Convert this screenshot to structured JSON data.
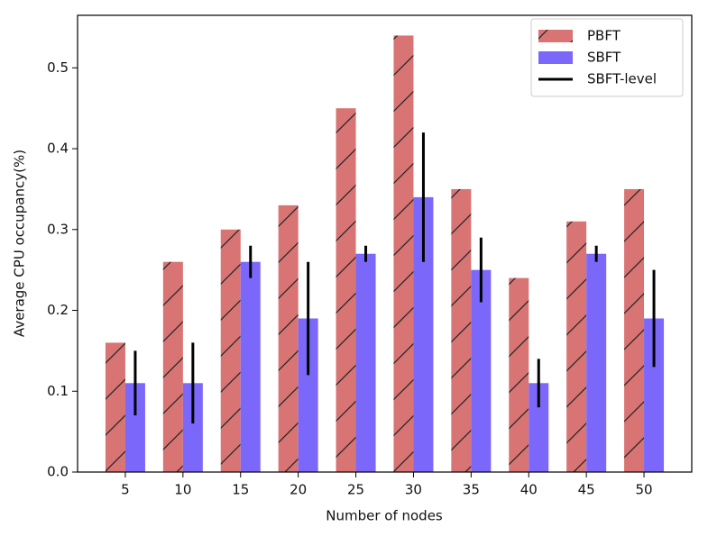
{
  "chart_data": {
    "type": "bar",
    "xlabel": "Number of nodes",
    "ylabel": "Average CPU occupancy(%)",
    "categories": [
      5,
      10,
      15,
      20,
      25,
      30,
      35,
      40,
      45,
      50
    ],
    "series": [
      {
        "name": "PBFT",
        "color": "#d87473",
        "hatch": "/",
        "values": [
          0.16,
          0.26,
          0.3,
          0.33,
          0.45,
          0.54,
          0.35,
          0.24,
          0.31,
          0.35
        ]
      },
      {
        "name": "SBFT",
        "color": "#7b68fb",
        "values": [
          0.11,
          0.11,
          0.26,
          0.19,
          0.27,
          0.34,
          0.25,
          0.11,
          0.27,
          0.19
        ],
        "error": {
          "name": "SBFT-level",
          "color": "#000000",
          "values": [
            0.04,
            0.05,
            0.02,
            0.07,
            0.01,
            0.08,
            0.04,
            0.03,
            0.01,
            0.06
          ]
        }
      }
    ],
    "ylim": [
      0,
      0.565
    ],
    "yticks": [
      {
        "value": 0,
        "label": "0.0"
      },
      0.1,
      0.2,
      0.3,
      0.4,
      0.5
    ],
    "legend": "upper right"
  }
}
